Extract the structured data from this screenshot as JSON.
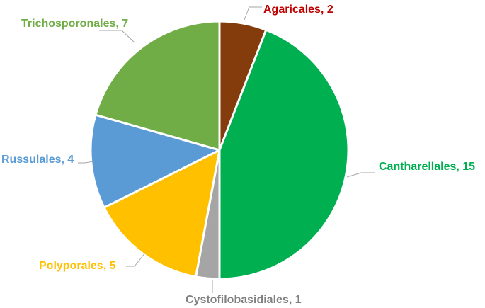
{
  "chart_data": {
    "type": "pie",
    "title": "",
    "slices": [
      {
        "category": "Agaricales",
        "value": 2,
        "label_text": "Agaricales, 2",
        "color": "#843c0c",
        "label_color": "#c00000"
      },
      {
        "category": "Cantharellales",
        "value": 15,
        "label_text": "Cantharellales, 15",
        "color": "#00b050",
        "label_color": "#00b050"
      },
      {
        "category": "Cystofilobasidiales",
        "value": 1,
        "label_text": "Cystofilobasidiales, 1",
        "color": "#a5a5a5",
        "label_color": "#808080"
      },
      {
        "category": "Polyporales",
        "value": 5,
        "label_text": "Polyporales, 5",
        "color": "#ffc000",
        "label_color": "#ffc000"
      },
      {
        "category": "Russulales",
        "value": 4,
        "label_text": "Russulales, 4",
        "color": "#5b9bd5",
        "label_color": "#5b9bd5"
      },
      {
        "category": "Trichosporonales",
        "value": 7,
        "label_text": "Trichosporonales, 7",
        "color": "#70ad47",
        "label_color": "#70ad47"
      }
    ],
    "start_angle": "12 o'clock",
    "direction": "clockwise",
    "legend": "none",
    "data_labels": "outside-with-leader-lines"
  }
}
